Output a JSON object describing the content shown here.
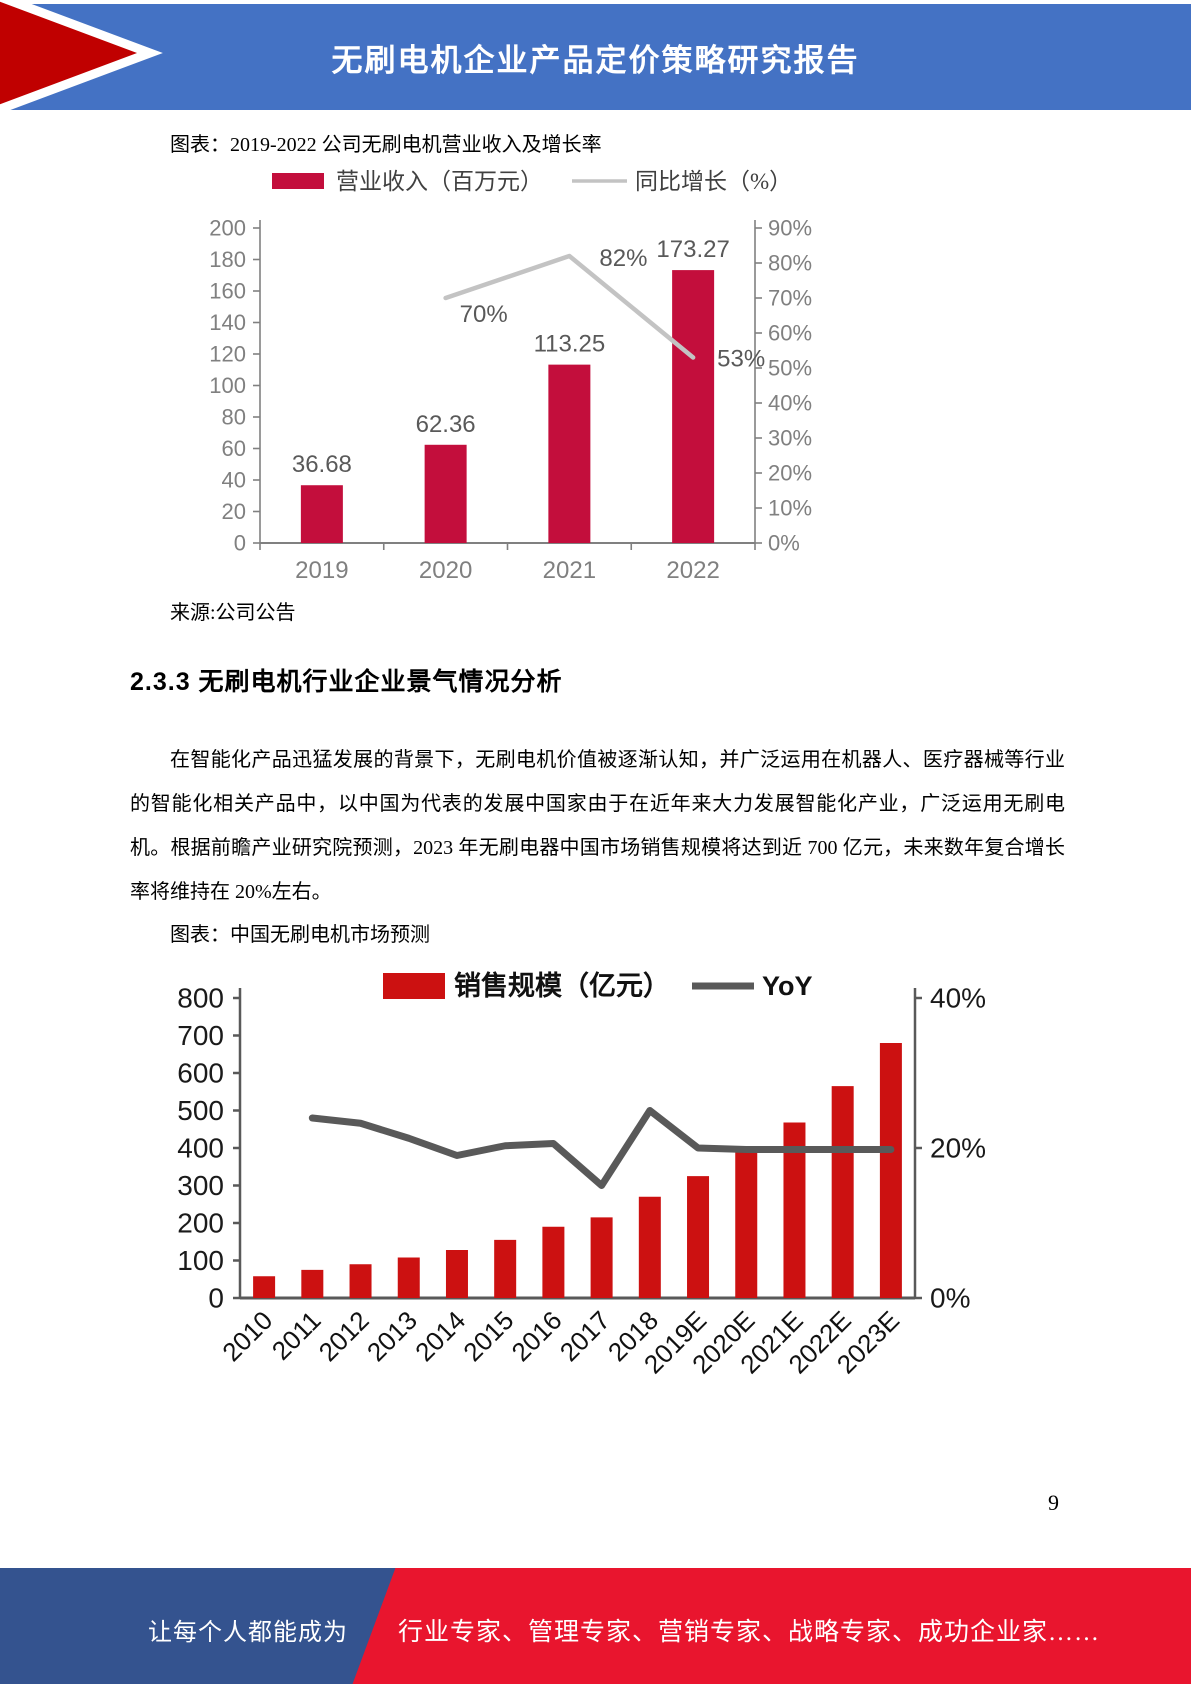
{
  "header": {
    "title": "无刷电机企业产品定价策略研究报告"
  },
  "figure1": {
    "caption": "图表：2019-2022 公司无刷电机营业收入及增长率",
    "source": "来源:公司公告"
  },
  "section": {
    "heading": "2.3.3 无刷电机行业企业景气情况分析",
    "paragraph": "在智能化产品迅猛发展的背景下，无刷电机价值被逐渐认知，并广泛运用在机器人、医疗器械等行业的智能化相关产品中，以中国为代表的发展中国家由于在近年来大力发展智能化产业，广泛运用无刷电机。根据前瞻产业研究院预测，2023 年无刷电器中国市场销售规模将达到近 700 亿元，未来数年复合增长率将维持在 20%左右。"
  },
  "figure2": {
    "caption": "图表：中国无刷电机市场预测"
  },
  "page": {
    "number": "9"
  },
  "footer": {
    "left": "让每个人都能成为",
    "right": "行业专家、管理专家、营销专家、战略专家、成功企业家……"
  },
  "colors": {
    "header_blue": "#4472C4",
    "header_arrow_red": "#C00000",
    "chart1_bar": "#C30E3C",
    "chart1_line": "#C3C3C3",
    "chart2_bar": "#CC1111",
    "chart2_line": "#595959",
    "footer_blue": "#34538F",
    "footer_red": "#E9152E"
  },
  "chart_data": [
    {
      "type": "bar",
      "combo": "bar+line",
      "title": "图表：2019-2022 公司无刷电机营业收入及增长率",
      "categories": [
        "2019",
        "2020",
        "2021",
        "2022"
      ],
      "series": [
        {
          "name": "营业收入（百万元）",
          "type": "bar",
          "axis": "left",
          "values": [
            36.68,
            62.36,
            113.25,
            173.27
          ],
          "labels": [
            "36.68",
            "62.36",
            "113.25",
            "173.27"
          ],
          "color": "#C30E3C"
        },
        {
          "name": "同比增长（%）",
          "type": "line",
          "axis": "right",
          "values": [
            null,
            70,
            82,
            53
          ],
          "labels": [
            null,
            "70%",
            "82%",
            "53%"
          ],
          "color": "#C3C3C3"
        }
      ],
      "left_axis": {
        "min": 0,
        "max": 200,
        "step": 20
      },
      "right_axis": {
        "min": 0,
        "max": 90,
        "step": 10,
        "format": "percent"
      },
      "legend_position": "top",
      "grid": false
    },
    {
      "type": "bar",
      "combo": "bar+line",
      "title": "图表：中国无刷电机市场预测",
      "categories": [
        "2010",
        "2011",
        "2012",
        "2013",
        "2014",
        "2015",
        "2016",
        "2017",
        "2018",
        "2019E",
        "2020E",
        "2021E",
        "2022E",
        "2023E"
      ],
      "series": [
        {
          "name": "销售规模（亿元）",
          "type": "bar",
          "axis": "left",
          "values": [
            58,
            75,
            90,
            108,
            128,
            155,
            190,
            215,
            270,
            325,
            392,
            468,
            565,
            680
          ],
          "color": "#CC1111"
        },
        {
          "name": "YoY",
          "type": "line",
          "axis": "right",
          "values": [
            null,
            24,
            23.3,
            21.3,
            19,
            20.3,
            20.6,
            15,
            25,
            20,
            19.8,
            19.8,
            19.8,
            19.8
          ],
          "color": "#595959"
        }
      ],
      "left_axis": {
        "min": 0,
        "max": 800,
        "step": 100
      },
      "right_axis": {
        "min": 0,
        "max": 40,
        "step": 20,
        "format": "percent"
      },
      "legend_position": "top",
      "grid": false
    }
  ]
}
